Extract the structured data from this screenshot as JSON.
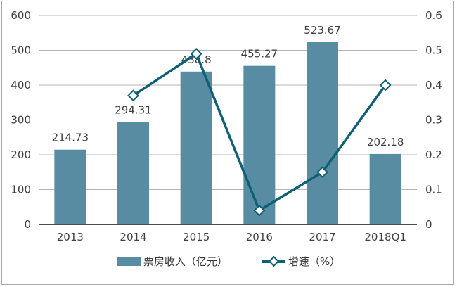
{
  "chart_data": {
    "type": "combo-bar-line",
    "categories": [
      "2013",
      "2014",
      "2015",
      "2016",
      "2017",
      "2018Q1"
    ],
    "series": [
      {
        "name": "票房收入（亿元）",
        "type": "bar",
        "axis": "left",
        "values": [
          214.73,
          294.31,
          438.8,
          455.27,
          523.67,
          202.18
        ],
        "labels": [
          "214.73",
          "294.31",
          "438.8",
          "455.27",
          "523.67",
          "202.18"
        ],
        "color": "#588ca2"
      },
      {
        "name": "增速（%）",
        "type": "line",
        "axis": "right",
        "marker": "diamond",
        "values": [
          null,
          0.37,
          0.49,
          0.04,
          0.15,
          0.4
        ],
        "color": "#0e6076"
      }
    ],
    "left_axis": {
      "min": 0,
      "max": 600,
      "step": 100,
      "ticks": [
        "0",
        "100",
        "200",
        "300",
        "400",
        "500",
        "600"
      ]
    },
    "right_axis": {
      "min": 0,
      "max": 0.6,
      "step": 0.1,
      "ticks": [
        "0",
        "0.1",
        "0.2",
        "0.3",
        "0.4",
        "0.5",
        "0.6"
      ]
    },
    "title": "",
    "xlabel": "",
    "ylabel": "",
    "grid": true,
    "legend_position": "bottom"
  },
  "colors": {
    "bar": "#588ca2",
    "line": "#0e6076",
    "marker_fill": "#ffffff",
    "gridline": "#b5b5b5",
    "axis_line": "#4d4d4d",
    "text": "#3f3f3f",
    "frame_border": "#a8a8a8",
    "background": "#ffffff"
  }
}
